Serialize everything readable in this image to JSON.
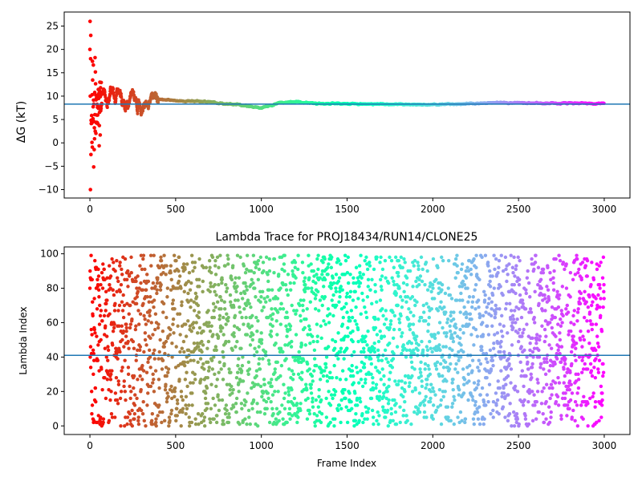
{
  "chart_data": [
    {
      "type": "scatter",
      "title": "",
      "xlabel": "",
      "ylabel": "ΔG (kT)",
      "xlim": [
        -150,
        3150
      ],
      "ylim": [
        -11.8,
        28
      ],
      "xticks": [
        0,
        500,
        1000,
        1500,
        2000,
        2500,
        3000
      ],
      "yticks": [
        -10,
        -5,
        0,
        5,
        10,
        15,
        20,
        25
      ],
      "hline": 8.3,
      "colormap": "rainbow_r",
      "n_points": 3000,
      "series": [
        {
          "x": [
            0,
            5,
            10,
            15,
            20,
            25,
            30,
            40,
            50,
            60,
            70,
            80,
            100,
            120,
            150,
            170,
            200,
            250,
            300,
            350,
            380,
            400,
            450,
            500,
            600,
            700,
            800,
            900,
            950,
            1000,
            1100,
            1200,
            1300,
            1500,
            1700,
            2000,
            2200,
            2400,
            2500,
            2700,
            3000
          ],
          "y": [
            20,
            26,
            10,
            -10,
            18,
            23,
            -2.5,
            15,
            12,
            7,
            10,
            11,
            9,
            11.5,
            9.5,
            12,
            8.5,
            9.5,
            7,
            9,
            10.8,
            9.5,
            9.2,
            9,
            8.9,
            8.8,
            8.3,
            8,
            7.6,
            7.5,
            8.6,
            8.8,
            8.5,
            8.3,
            8.3,
            8.2,
            8.4,
            8.6,
            8.6,
            8.5,
            8.4
          ]
        }
      ]
    },
    {
      "type": "scatter",
      "title": "Lambda Trace for PROJ18434/RUN14/CLONE25",
      "xlabel": "Frame Index",
      "ylabel": "Lambda Index",
      "xlim": [
        -150,
        3150
      ],
      "ylim": [
        -5,
        104
      ],
      "xticks": [
        0,
        500,
        1000,
        1500,
        2000,
        2500,
        3000
      ],
      "yticks": [
        0,
        20,
        40,
        60,
        80,
        100
      ],
      "hline": 41,
      "colormap": "rainbow_r",
      "n_points": 3000,
      "y_range_of_points": [
        0,
        99
      ]
    }
  ]
}
